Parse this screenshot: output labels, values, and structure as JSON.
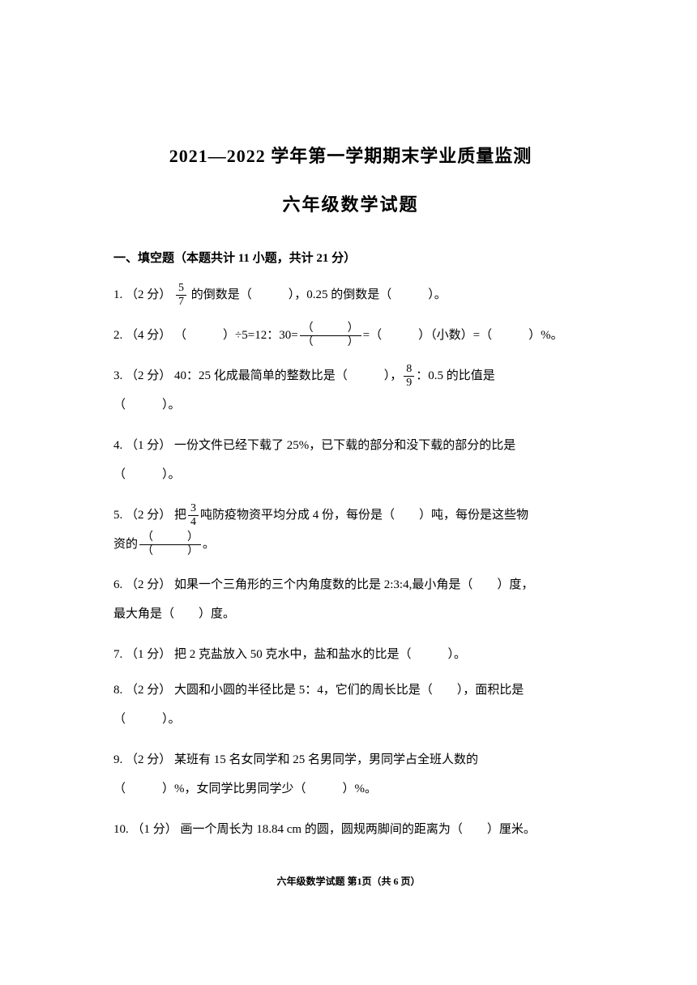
{
  "title_main": "2021—2022 学年第一学期期末学业质量监测",
  "title_sub": "六年级数学试题",
  "section_header": "一、填空题（本题共计 11 小题，共计 21 分）",
  "q1": {
    "prefix": "1. （2 分） ",
    "frac_num": "5",
    "frac_den": "7",
    "mid": " 的倒数是（　　　），0.25 的倒数是（　　　）。"
  },
  "q2": {
    "prefix": "2. （4 分） （　　　）÷5=12：30=",
    "frac_num": "（　　　）",
    "frac_den": "（　　　）",
    "suffix": "=（　　　）（小数）=（　　　）%。"
  },
  "q3": {
    "prefix": "3. （2 分）  40：25  化成最简单的整数比是（　　　），",
    "frac_num": "8",
    "frac_den": "9",
    "mid": "：0.5  的比值是",
    "line2": "（　　　）。"
  },
  "q4": {
    "line1": "4. （1 分）  一份文件已经下载了  25%，已下载的部分和没下载的部分的比是",
    "line2": "（　　　）。"
  },
  "q5": {
    "prefix": "5. （2 分）  把",
    "frac_num": "3",
    "frac_den": "4",
    "mid": "吨防疫物资平均分成 4 份，每份是（　　）吨，每份是这些物",
    "line2_prefix": "资的",
    "frac2_num": "（　　　）",
    "frac2_den": "（　　　）",
    "line2_suffix": "。"
  },
  "q6": {
    "line1": "6. （2 分）  如果一个三角形的三个内角度数的比是 2:3:4,最小角是（　　）度，",
    "line2": "最大角是（　　）度。"
  },
  "q7": {
    "text": "7. （1 分）  把 2 克盐放入 50 克水中，盐和盐水的比是（　　　）。"
  },
  "q8": {
    "line1": "8. （2 分）  大圆和小圆的半径比是 5：4，它们的周长比是（　　），面积比是",
    "line2": "（　　　）。"
  },
  "q9": {
    "line1": "9.  （2  分）    某班有  15  名女同学和  25  名男同学，男同学占全班人数的",
    "line2": "（　　　）%，女同学比男同学少（　　　）%。"
  },
  "q10": {
    "text": "10. （1 分）  画一个周长为  18.84  cm  的圆，圆规两脚间的距离为（　　）厘米。"
  },
  "footer": "六年级数学试题  第1页（共 6 页）"
}
